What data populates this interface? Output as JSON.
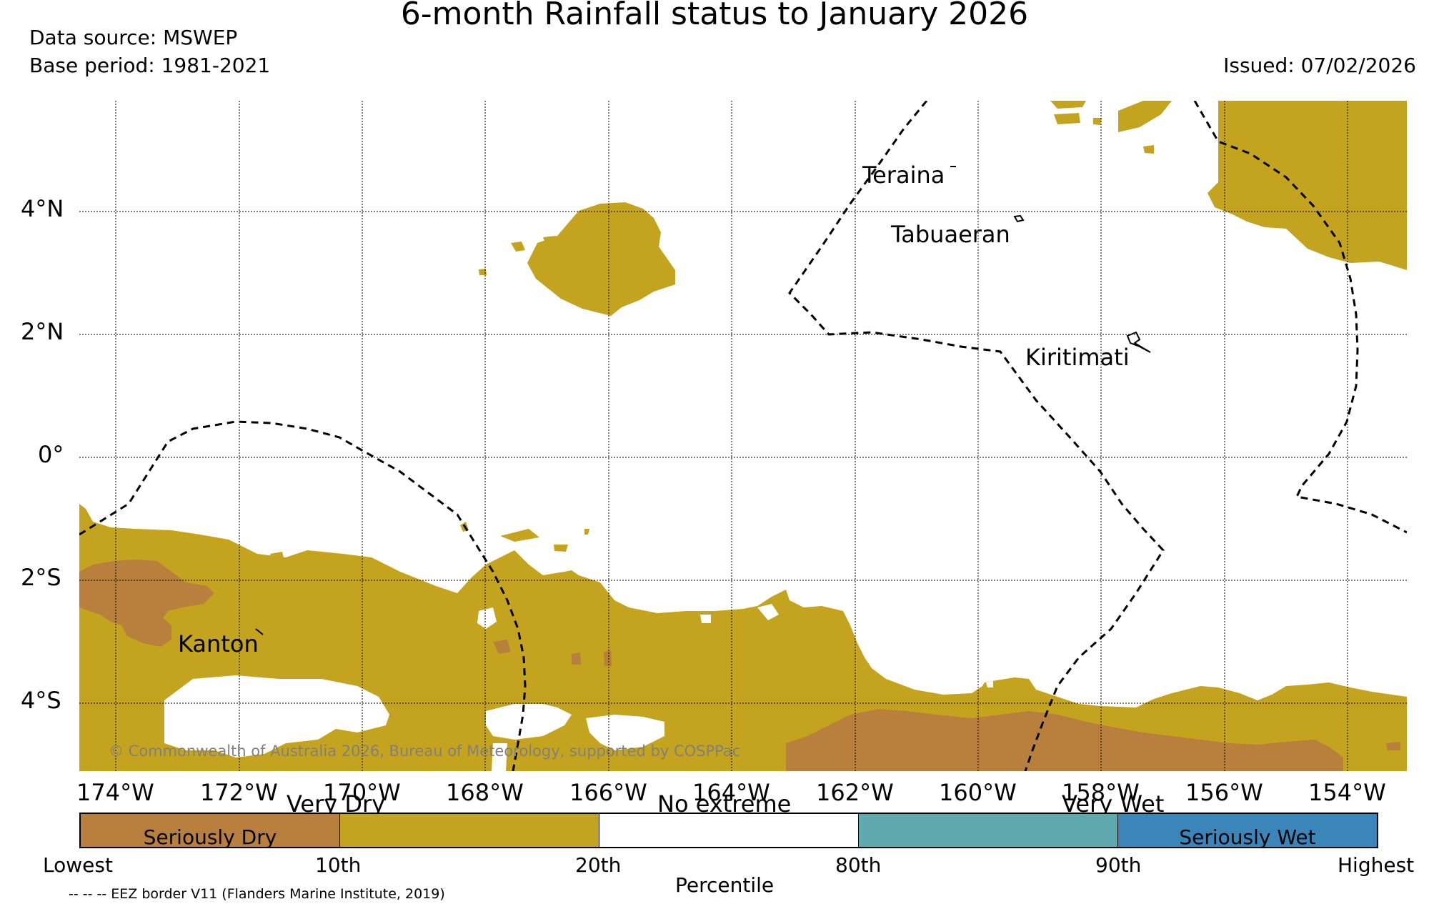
{
  "title": "6-month Rainfall status to January 2026",
  "header": {
    "data_source": "Data source: MSWEP",
    "base_period": "Base period: 1981-2021",
    "issued": "Issued: 07/02/2026"
  },
  "map": {
    "lon_labels": [
      "174°W",
      "172°W",
      "170°W",
      "168°W",
      "166°W",
      "164°W",
      "162°W",
      "160°W",
      "158°W",
      "156°W",
      "154°W"
    ],
    "lat_labels": [
      "4°N",
      "2°N",
      "0°",
      "2°S",
      "4°S"
    ],
    "places": [
      "Teraina",
      "Tabuaeran",
      "Kiritimati",
      "Kanton"
    ],
    "copyright": "© Commonwealth of Australia 2026, Bureau of Meteorology, supported by COSPPac"
  },
  "legend": {
    "group_labels": [
      "Very Dry",
      "No extreme",
      "Very Wet"
    ],
    "categories": [
      {
        "label": "Seriously Dry",
        "color": "#b8803c"
      },
      {
        "label": "",
        "color": "#c4a31e"
      },
      {
        "label": "",
        "color": "#ffffff"
      },
      {
        "label": "",
        "color": "#5eaaae"
      },
      {
        "label": "Seriously Wet",
        "color": "#3a85b9"
      }
    ],
    "percentiles": [
      "Lowest",
      "10th",
      "20th",
      "80th",
      "90th",
      "Highest"
    ],
    "axis_label": "Percentile"
  },
  "eez_note": "-- -- -- EEZ border V11 (Flanders Marine Institute, 2019)",
  "colors": {
    "seriously_dry": "#b8803c",
    "very_dry": "#c4a31e",
    "no_extreme": "#ffffff",
    "very_wet": "#5eaaae",
    "seriously_wet": "#3a85b9"
  }
}
